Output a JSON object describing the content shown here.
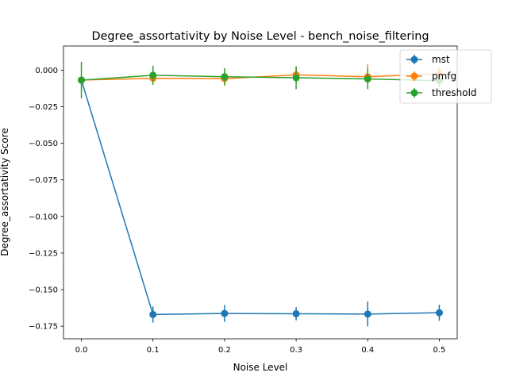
{
  "chart_data": {
    "type": "line",
    "title": "Degree_assortativity by Noise Level - bench_noise_filtering",
    "xlabel": "Noise Level",
    "ylabel": "Degree_assortativity Score",
    "xlim": [
      -0.025,
      0.525
    ],
    "ylim": [
      -0.1836,
      0.0165
    ],
    "x_ticks": [
      0.0,
      0.1,
      0.2,
      0.3,
      0.4,
      0.5
    ],
    "x_tick_labels": [
      "0.0",
      "0.1",
      "0.2",
      "0.3",
      "0.4",
      "0.5"
    ],
    "y_ticks": [
      0.0,
      -0.025,
      -0.05,
      -0.075,
      -0.1,
      -0.125,
      -0.15,
      -0.175
    ],
    "y_tick_labels": [
      "0.000",
      "−0.025",
      "−0.050",
      "−0.075",
      "−0.100",
      "−0.125",
      "−0.150",
      "−0.175"
    ],
    "grid": false,
    "legend_position": "top-right",
    "x": [
      0.0,
      0.1,
      0.2,
      0.3,
      0.4,
      0.5
    ],
    "series": [
      {
        "name": "mst",
        "color": "#1f77b4",
        "values": [
          -0.0068,
          -0.167,
          -0.1663,
          -0.1665,
          -0.1667,
          -0.1658
        ],
        "errors": [
          0.0,
          0.0055,
          0.0058,
          0.0045,
          0.0085,
          0.0055
        ]
      },
      {
        "name": "pmfg",
        "color": "#ff7f0e",
        "values": [
          -0.0068,
          -0.0055,
          -0.0058,
          -0.0032,
          -0.0045,
          -0.0025
        ],
        "errors": [
          0.0,
          0.0035,
          0.0048,
          0.0055,
          0.0085,
          0.0045
        ]
      },
      {
        "name": "threshold",
        "color": "#2ca02c",
        "values": [
          -0.0068,
          -0.0035,
          -0.0045,
          -0.0052,
          -0.006,
          -0.0072
        ],
        "errors": [
          0.0125,
          0.0065,
          0.0058,
          0.0078,
          0.0068,
          0.0045
        ]
      }
    ]
  }
}
